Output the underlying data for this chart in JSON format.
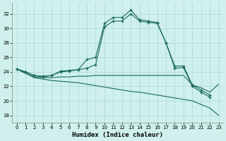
{
  "background_color": "#cff0ec",
  "grid_color": "#aad8d2",
  "line_color": "#1a6b5a",
  "xlabel": "Humidex (Indice chaleur)",
  "xlim": [
    -0.5,
    23.5
  ],
  "ylim": [
    17.0,
    33.5
  ],
  "yticks": [
    18,
    20,
    22,
    24,
    26,
    28,
    30,
    32
  ],
  "xticks": [
    0,
    1,
    2,
    3,
    4,
    5,
    6,
    7,
    8,
    9,
    10,
    11,
    12,
    13,
    14,
    15,
    16,
    17,
    18,
    19,
    20,
    21,
    22,
    23
  ],
  "lines": [
    {
      "x": [
        0,
        1,
        2,
        3,
        4,
        5,
        6,
        7,
        8,
        9,
        10,
        11,
        12,
        13,
        14,
        15,
        16,
        17,
        18,
        19,
        20,
        21,
        22
      ],
      "y": [
        24.4,
        24.0,
        23.5,
        23.3,
        23.5,
        24.1,
        24.2,
        24.3,
        25.7,
        26.0,
        30.7,
        31.5,
        31.5,
        32.5,
        31.2,
        31.0,
        30.8,
        28.0,
        24.8,
        24.8,
        22.2,
        21.5,
        20.8
      ],
      "marker": true
    },
    {
      "x": [
        0,
        1,
        2,
        3,
        4,
        5,
        6,
        7,
        8,
        9,
        10,
        11,
        12,
        13,
        14,
        15,
        16,
        17,
        18,
        19,
        20,
        21,
        22
      ],
      "y": [
        24.4,
        24.0,
        23.5,
        23.4,
        23.5,
        24.0,
        24.1,
        24.3,
        24.5,
        25.0,
        30.2,
        31.0,
        31.0,
        32.0,
        31.0,
        30.8,
        30.7,
        28.0,
        24.5,
        24.6,
        22.0,
        21.2,
        20.5
      ],
      "marker": true
    },
    {
      "x": [
        0,
        1,
        2,
        3,
        4,
        5,
        6,
        7,
        8,
        9,
        10,
        11,
        12,
        13,
        14,
        15,
        16,
        17,
        18,
        19,
        20,
        21,
        22,
        23
      ],
      "y": [
        24.4,
        23.8,
        23.3,
        23.2,
        23.2,
        23.3,
        23.3,
        23.4,
        23.4,
        23.5,
        23.5,
        23.5,
        23.5,
        23.5,
        23.5,
        23.5,
        23.5,
        23.5,
        23.5,
        23.5,
        22.2,
        21.8,
        21.2,
        22.3
      ],
      "marker": false
    },
    {
      "x": [
        0,
        1,
        2,
        3,
        4,
        5,
        6,
        7,
        8,
        9,
        10,
        11,
        12,
        13,
        14,
        15,
        16,
        17,
        18,
        19,
        20,
        21,
        22,
        23
      ],
      "y": [
        24.4,
        23.8,
        23.2,
        23.0,
        22.8,
        22.7,
        22.6,
        22.5,
        22.3,
        22.1,
        21.9,
        21.7,
        21.5,
        21.3,
        21.2,
        21.0,
        20.8,
        20.6,
        20.4,
        20.2,
        20.0,
        19.5,
        19.0,
        18.0
      ],
      "marker": false
    }
  ]
}
